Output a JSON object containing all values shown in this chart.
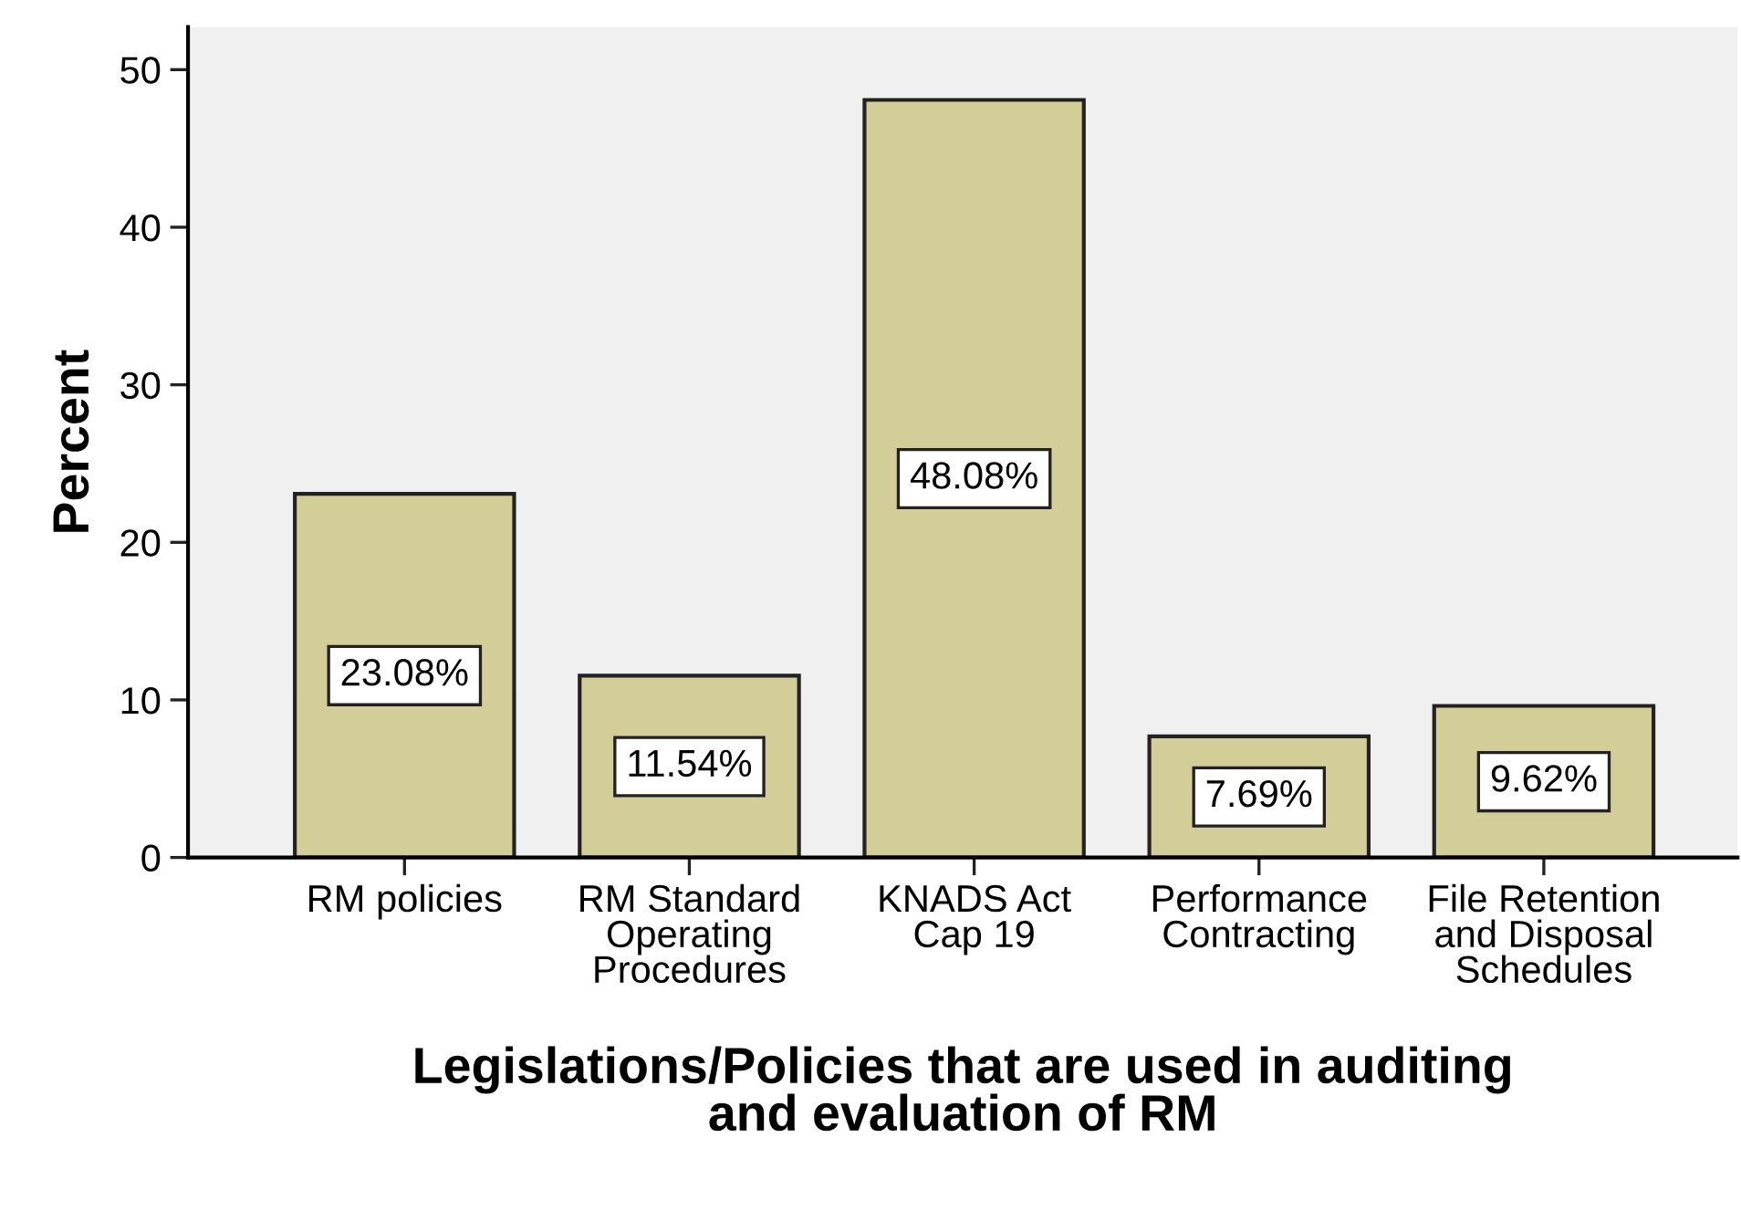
{
  "chart_data": {
    "type": "bar",
    "categories": [
      "RM policies",
      "RM Standard\nOperating\nProcedures",
      "KNADS Act\nCap 19",
      "Performance\nContracting",
      "File Retention\nand Disposal\nSchedules"
    ],
    "values": [
      23.08,
      11.54,
      48.08,
      7.69,
      9.62
    ],
    "value_labels": [
      "23.08%",
      "11.54%",
      "48.08%",
      "7.69%",
      "9.62%"
    ],
    "color": "#d3ce97",
    "xlabel": "Legislations/Policies that are used in auditing\nand evaluation of RM",
    "ylabel": "Percent",
    "ylim": [
      0,
      52.7
    ],
    "yticks": [
      0,
      10,
      20,
      30,
      40,
      50
    ],
    "grid": false
  }
}
